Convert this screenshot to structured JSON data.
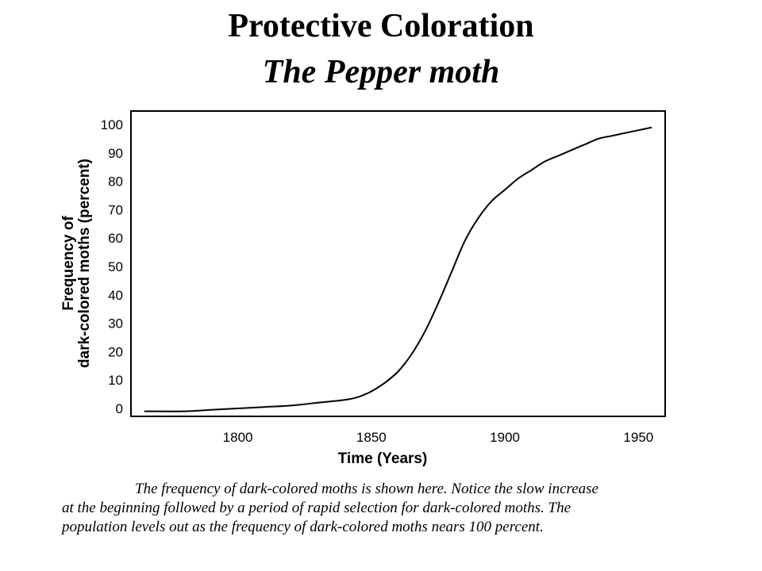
{
  "header": {
    "title": "Protective Coloration",
    "subtitle": "The Pepper moth"
  },
  "caption": {
    "lines": [
      "The frequency of dark-colored moths is shown here. Notice the slow increase",
      "at the beginning followed by a period of rapid selection for dark-colored moths. The",
      "population levels out as the frequency of dark-colored moths nears 100 percent."
    ]
  },
  "chart_data": {
    "type": "line",
    "title": "",
    "xlabel": "Time (Years)",
    "ylabel_lines": [
      "Frequency of",
      "dark-colored moths (percent)"
    ],
    "xlim": [
      1760,
      1960
    ],
    "ylim": [
      0,
      100
    ],
    "x_ticks": [
      1800,
      1850,
      1900,
      1950
    ],
    "x_tick_labels": [
      "1800",
      "1850",
      "1900",
      "1950"
    ],
    "y_ticks": [
      0,
      10,
      20,
      30,
      40,
      50,
      60,
      70,
      80,
      90,
      100
    ],
    "grid": false,
    "legend": "none",
    "series": [
      {
        "x": [
          1765,
          1780,
          1790,
          1800,
          1810,
          1820,
          1830,
          1840,
          1845,
          1850,
          1855,
          1860,
          1865,
          1870,
          1875,
          1880,
          1885,
          1890,
          1895,
          1900,
          1905,
          1910,
          1915,
          1920,
          1925,
          1930,
          1935,
          1940,
          1945,
          1950,
          1955
        ],
        "y": [
          -1,
          -1,
          -0.5,
          0,
          0.5,
          1,
          2,
          3,
          4,
          6,
          9,
          13,
          19,
          27,
          37,
          48,
          59,
          67,
          73,
          77,
          81,
          84,
          87,
          89,
          91,
          93,
          95,
          96,
          97,
          98,
          99
        ]
      }
    ],
    "colors": {
      "line": "#000000",
      "frame": "#000000"
    }
  }
}
